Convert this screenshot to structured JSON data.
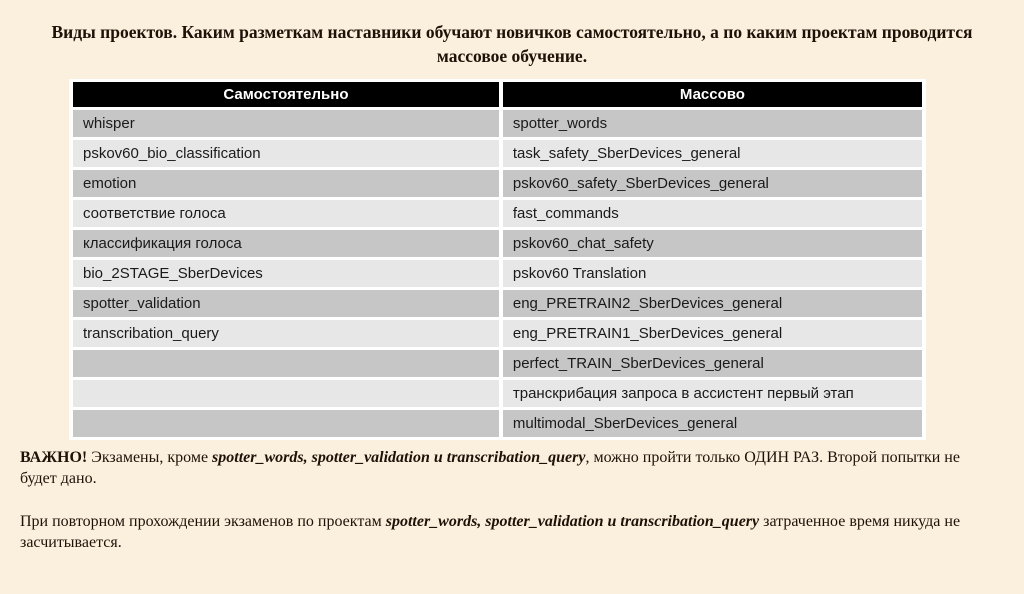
{
  "title": "Виды проектов. Каким разметкам наставники обучают новичков самостоятельно, а по каким проектам проводится массовое обучение.",
  "table": {
    "headers": [
      "Самостоятельно",
      "Массово"
    ],
    "rows": [
      [
        "whisper",
        "spotter_words"
      ],
      [
        "pskov60_bio_classification",
        "task_safety_SberDevices_general"
      ],
      [
        "emotion",
        "pskov60_safety_SberDevices_general"
      ],
      [
        "соответствие голоса",
        "fast_commands"
      ],
      [
        "классификация голоса",
        "pskov60_chat_safety"
      ],
      [
        "bio_2STAGE_SberDevices",
        "pskov60 Translation"
      ],
      [
        "spotter_validation",
        "eng_PRETRAIN2_SberDevices_general"
      ],
      [
        "transcribation_query",
        "eng_PRETRAIN1_SberDevices_general"
      ],
      [
        "",
        "perfect_TRAIN_SberDevices_general"
      ],
      [
        "",
        "транскрибация запроса в ассистент первый этап"
      ],
      [
        "",
        "multimodal_SberDevices_general"
      ]
    ]
  },
  "notes": {
    "important": {
      "label": "ВАЖНО!",
      "pre": " Экзамены, кроме ",
      "em": "spotter_words, spotter_validation и transcribation_query",
      "post": ", можно пройти только ОДИН РАЗ. Второй попытки не будет дано."
    },
    "retake": {
      "pre": "При повторном прохождении экзаменов по проектам ",
      "em": "spotter_words, spotter_validation и transcribation_query",
      "post": " затраченное время никуда не засчитывается."
    }
  },
  "colors": {
    "background": "#FAF0DD",
    "header_bg": "#000000",
    "header_text": "#FFFFFF",
    "row_dark": "#C6C6C6",
    "row_light": "#E7E7E7",
    "row_gap": "#FFFFFF",
    "text": "#1E1208"
  }
}
